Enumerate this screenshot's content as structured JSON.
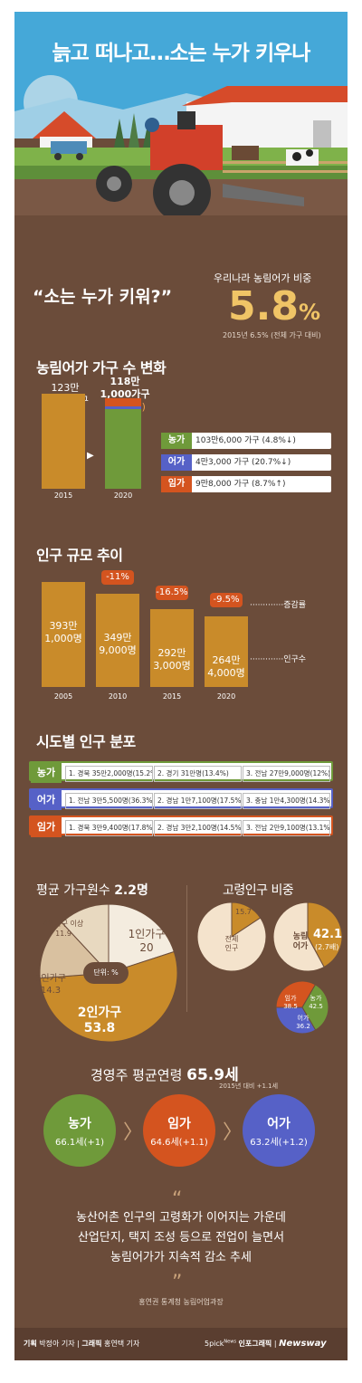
{
  "title": "늙고 떠나고…소는 누가 키우나",
  "hero": {
    "quote": "“소는 누가 키워?”",
    "share_label": "우리나라 농림어가 비중",
    "share_value": "5.8",
    "share_unit": "%",
    "share_note": "2015년 6.5% (전체 가구 대비)"
  },
  "households": {
    "heading": "농림어가 가구 수 변화",
    "bar2015_label": "123만\n7,000가구",
    "bar2020_label": "118만\n1,000가구",
    "bar2020_change": "(4.5%↓)",
    "year_2015": "2015",
    "year_2020": "2020",
    "legend": [
      {
        "tag": "농가",
        "value": "103만6,000 가구 (4.8%↓)",
        "color": "#6f9a3a"
      },
      {
        "tag": "어가",
        "value": "4만3,000 가구 (20.7%↓)",
        "color": "#5661c7"
      },
      {
        "tag": "임가",
        "value": "9만8,000 가구 (8.7%↑)",
        "color": "#d4541f"
      }
    ],
    "chart_data": {
      "type": "bar",
      "categories": [
        "2015",
        "2020"
      ],
      "values": [
        1237000,
        1181000
      ],
      "stack_2020": [
        {
          "name": "농가",
          "value": 1036000
        },
        {
          "name": "어가",
          "value": 43000
        },
        {
          "name": "임가",
          "value": 98000
        }
      ]
    }
  },
  "population": {
    "heading": "인구 규모 추이",
    "change_label": "증감률",
    "count_label": "인구수",
    "bars": [
      {
        "year": "2005",
        "label": "393만\n1,000명",
        "change": ""
      },
      {
        "year": "2010",
        "label": "349만\n9,000명",
        "change": "-11%"
      },
      {
        "year": "2015",
        "label": "292만\n3,000명",
        "change": "-16.5%"
      },
      {
        "year": "2020",
        "label": "264만\n4,000명",
        "change": "-9.5%"
      }
    ],
    "chart_data": {
      "type": "bar",
      "categories": [
        "2005",
        "2010",
        "2015",
        "2020"
      ],
      "values": [
        3931000,
        3499000,
        2923000,
        2644000
      ]
    }
  },
  "regions": {
    "heading": "시도별 인구 분포",
    "rows": [
      {
        "tag": "농가",
        "color": "#6f9a3a",
        "cells": [
          "1. 경북 35만2,000명(15.2%)",
          "2. 경기 31만명(13.4%)",
          "3. 전남 27만9,000명(12%)"
        ]
      },
      {
        "tag": "어가",
        "color": "#5661c7",
        "cells": [
          "1. 전남 3만5,500명(36.3%)",
          "2. 경남 1만7,100명(17.5%)",
          "3. 충남 1만4,300명(14.3%)"
        ]
      },
      {
        "tag": "임가",
        "color": "#d4541f",
        "cells": [
          "1. 경북 3만9,400명(17.8%)",
          "2. 경남 3만2,100명(14.5%)",
          "3. 전남 2만9,100명(13.1%)"
        ]
      }
    ]
  },
  "household_size": {
    "heading_prefix": "평균 가구원수 ",
    "heading_value": "2.2명",
    "unit_note": "단위: %",
    "slices": [
      {
        "label": "1인가구",
        "value": "20"
      },
      {
        "label": "2인가구",
        "value": "53.8"
      },
      {
        "label": "3인가구",
        "value": "14.3"
      },
      {
        "label": "4인가구 이상",
        "value": "11.9"
      }
    ],
    "chart_data": {
      "type": "pie",
      "categories": [
        "1인가구",
        "2인가구",
        "3인가구",
        "4인가구 이상"
      ],
      "values": [
        20,
        53.8,
        14.3,
        11.9
      ]
    }
  },
  "elderly": {
    "heading": "고령인구 비중",
    "total_label": "전체\n인구",
    "total_value": "15.7",
    "farm_label": "농림\n어가",
    "farm_value": "42.1",
    "farm_times": "(2.7배)",
    "sub": [
      {
        "label": "임가",
        "value": "38.5"
      },
      {
        "label": "농가",
        "value": "42.5"
      },
      {
        "label": "어가",
        "value": "36.2"
      }
    ],
    "chart_data": [
      {
        "type": "pie",
        "categories": [
          "전체 인구"
        ],
        "values": [
          15.7
        ]
      },
      {
        "type": "pie",
        "categories": [
          "농림어가"
        ],
        "values": [
          42.1
        ]
      },
      {
        "type": "pie",
        "categories": [
          "임가",
          "농가",
          "어가"
        ],
        "values": [
          38.5,
          42.5,
          36.2
        ]
      }
    ]
  },
  "age": {
    "heading_prefix": "경영주 평균연령 ",
    "heading_value": "65.9세",
    "note": "2015년 대비 +1.1세",
    "circles": [
      {
        "tag": "농가",
        "value": "66.1세(+1)",
        "color": "#6f9a3a"
      },
      {
        "tag": "임가",
        "value": "64.6세(+1.1)",
        "color": "#d4541f"
      },
      {
        "tag": "어가",
        "value": "63.2세(+1.2)",
        "color": "#5661c7"
      }
    ]
  },
  "closing": {
    "open_quote": "“",
    "lines": [
      "농산어촌 인구의 고령화가 이어지는 가운데",
      "산업단지, 택지 조성 등으로 전업이 늘면서",
      "농림어가가 지속적 감소 추세"
    ],
    "close_quote": "”",
    "source": "홍연권 통계청 농림어업과장"
  },
  "footer": {
    "credit_plan_label": "기획",
    "credit_plan": "박정아 기자",
    "credit_graphic_label": "그래픽",
    "credit_graphic": "홍연택 기자",
    "brand1": "5pick",
    "brand1_sup": "News",
    "brand2": "인포그래픽",
    "brand3": "Newsway"
  }
}
